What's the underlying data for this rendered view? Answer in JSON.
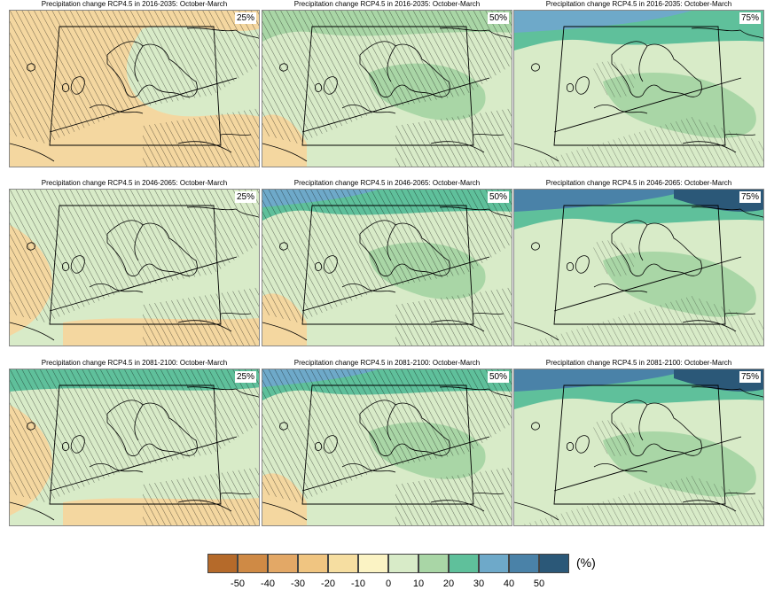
{
  "panels": [
    {
      "title": "Precipitation change RCP4.5 in 2016-2035: October-March",
      "percentile": "25%",
      "base": "#f4d7a0",
      "tone": "dry"
    },
    {
      "title": "Precipitation change RCP4.5 in 2016-2035: October-March",
      "percentile": "50%",
      "base": "#d8ebc8",
      "tone": "mild"
    },
    {
      "title": "Precipitation change RCP4.5 in 2016-2035: October-March",
      "percentile": "75%",
      "base": "#d8ebc8",
      "tone": "wet"
    },
    {
      "title": "Precipitation change RCP4.5 in 2046-2065: October-March",
      "percentile": "25%",
      "base": "#d8ebc8",
      "tone": "dry"
    },
    {
      "title": "Precipitation change RCP4.5 in 2046-2065: October-March",
      "percentile": "50%",
      "base": "#d8ebc8",
      "tone": "mild"
    },
    {
      "title": "Precipitation change RCP4.5 in 2046-2065: October-March",
      "percentile": "75%",
      "base": "#d8ebc8",
      "tone": "wet"
    },
    {
      "title": "Precipitation change RCP4.5 in 2081-2100: October-March",
      "percentile": "25%",
      "base": "#d8ebc8",
      "tone": "dry"
    },
    {
      "title": "Precipitation change RCP4.5 in 2081-2100: October-March",
      "percentile": "50%",
      "base": "#d8ebc8",
      "tone": "mild"
    },
    {
      "title": "Precipitation change RCP4.5 in 2081-2100: October-March",
      "percentile": "75%",
      "base": "#d8ebc8",
      "tone": "wet"
    }
  ],
  "legend": {
    "unit": "(%)",
    "ticks": [
      "-50",
      "-40",
      "-30",
      "-20",
      "-10",
      "0",
      "10",
      "20",
      "30",
      "40",
      "50"
    ],
    "colors": [
      "#b56a2a",
      "#cf8a45",
      "#e3a866",
      "#f0c581",
      "#f6dea1",
      "#fbf3c4",
      "#d8ebc8",
      "#a9d6a6",
      "#5fc09b",
      "#6ea9c9",
      "#4a82a8",
      "#2b5878"
    ]
  }
}
